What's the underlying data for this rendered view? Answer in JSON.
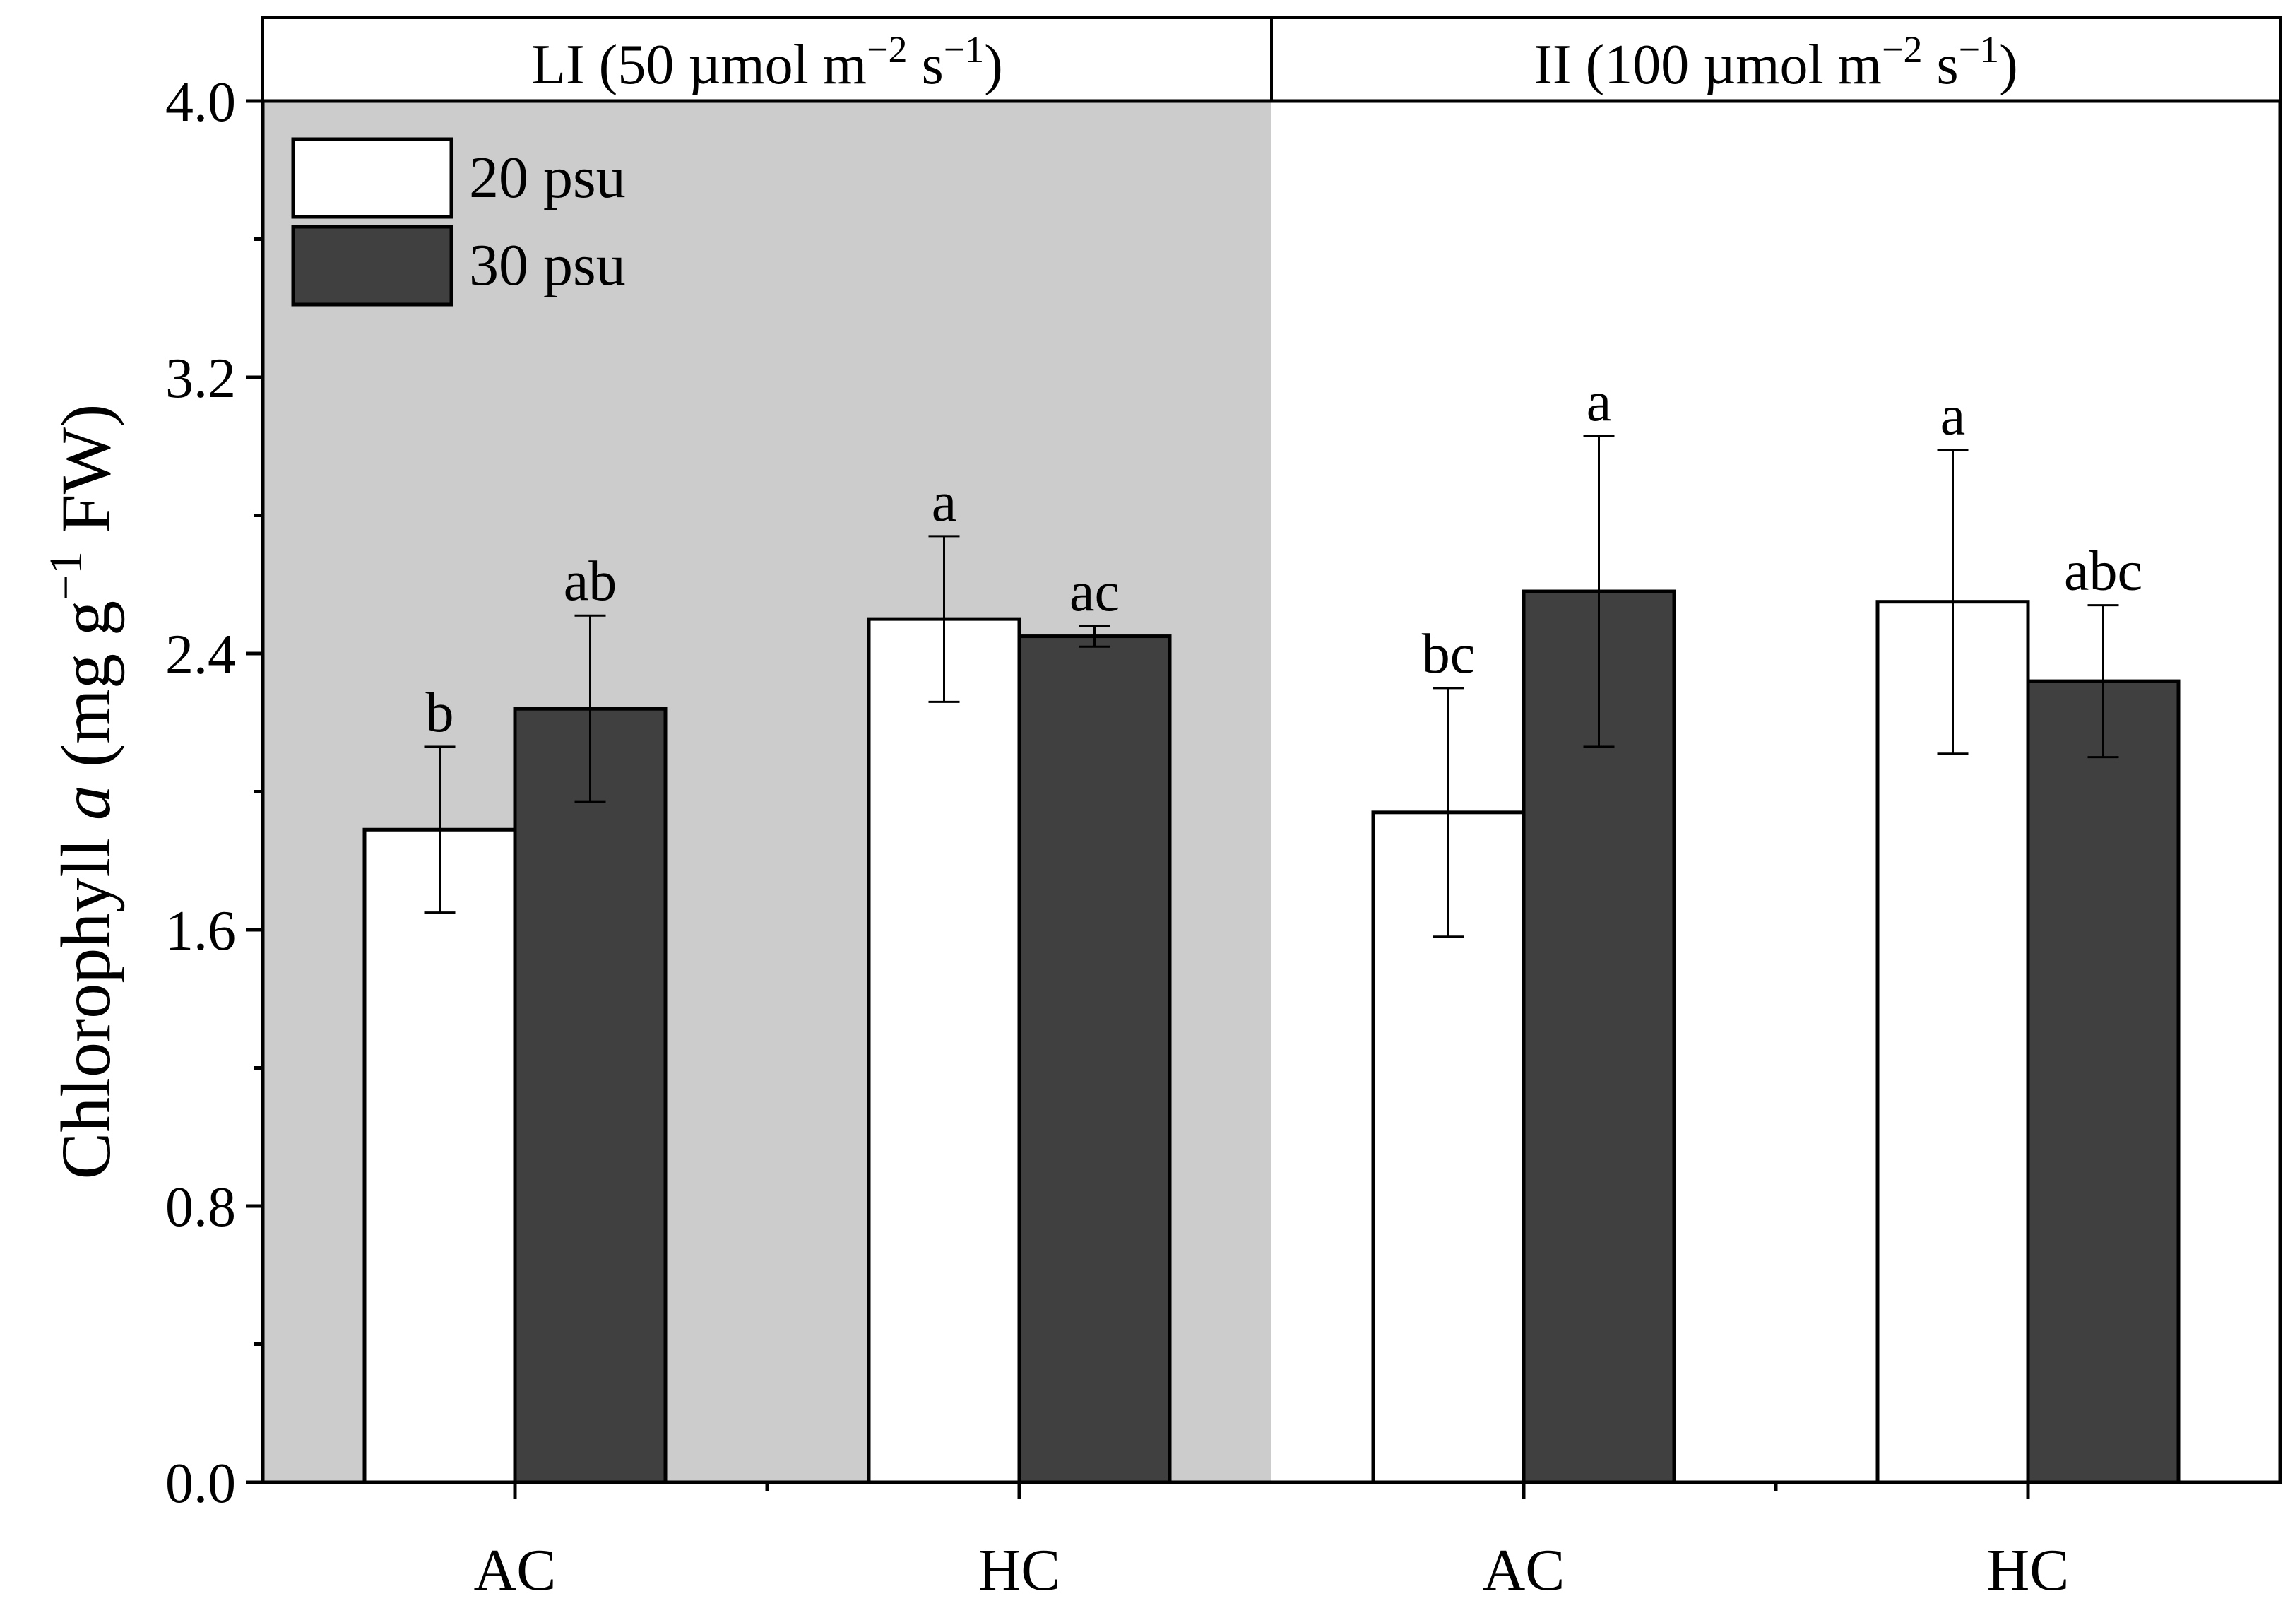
{
  "chart_data": {
    "type": "bar",
    "title": "",
    "ylabel": {
      "prefix": "Chlorophyll ",
      "italic": "a",
      "mid": " (mg g",
      "sup": "−1",
      "suffix": " FW)"
    },
    "xlabel": "",
    "ylim": [
      0,
      4.0
    ],
    "yticks": [
      "0.0",
      "0.8",
      "1.6",
      "2.4",
      "3.2",
      "4.0"
    ],
    "ytick_values": [
      0,
      0.8,
      1.6,
      2.4,
      3.2,
      4.0
    ],
    "yminor_step": 0.4,
    "colors": {
      "li_panel_bg": "#cccccc",
      "ii_panel_bg": "#ffffff",
      "series_20": "#ffffff",
      "series_30": "#404040",
      "stroke": "#000000"
    },
    "panels": [
      {
        "id": "li",
        "label": {
          "main": "LI (50 µmol m",
          "sup1": "−2",
          "mid": " s",
          "sup2": "−1",
          "end": ")"
        },
        "shaded": true,
        "groups": [
          {
            "category": "AC",
            "bars": [
              {
                "series": "20 psu",
                "value": 1.89,
                "err": 0.24,
                "letter": "b"
              },
              {
                "series": "30 psu",
                "value": 2.24,
                "err": 0.27,
                "letter": "ab"
              }
            ]
          },
          {
            "category": "HC",
            "bars": [
              {
                "series": "20 psu",
                "value": 2.5,
                "err": 0.24,
                "letter": "a"
              },
              {
                "series": "30 psu",
                "value": 2.45,
                "err": 0.03,
                "letter": "ac"
              }
            ]
          }
        ]
      },
      {
        "id": "ii",
        "label": {
          "main": "II (100 µmol m",
          "sup1": "−2",
          "mid": " s",
          "sup2": "−1",
          "end": ")"
        },
        "shaded": false,
        "groups": [
          {
            "category": "AC",
            "bars": [
              {
                "series": "20 psu",
                "value": 1.94,
                "err": 0.36,
                "letter": "bc"
              },
              {
                "series": "30 psu",
                "value": 2.58,
                "err": 0.45,
                "letter": "a"
              }
            ]
          },
          {
            "category": "HC",
            "bars": [
              {
                "series": "20 psu",
                "value": 2.55,
                "err": 0.44,
                "letter": "a"
              },
              {
                "series": "30 psu",
                "value": 2.32,
                "err": 0.22,
                "letter": "abc"
              }
            ]
          }
        ]
      }
    ],
    "legend": {
      "placement": "top-left",
      "entries": [
        {
          "label": "20 psu",
          "color": "#ffffff"
        },
        {
          "label": "30 psu",
          "color": "#404040"
        }
      ]
    }
  }
}
